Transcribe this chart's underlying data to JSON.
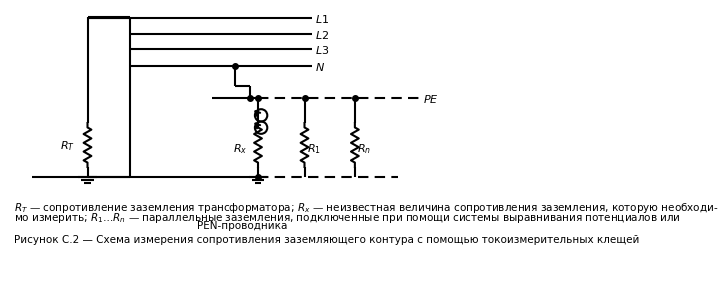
{
  "bg_color": "#ffffff",
  "line_color": "#000000",
  "labels": [
    "L1",
    "L2",
    "L3",
    "N",
    "PE"
  ],
  "R_labels": [
    "R_T",
    "R_x",
    "R_1",
    "R_n"
  ],
  "caption_line1": "R_T — сопротивление заземления трансформатора; R_x — неизвестная величина сопротивления заземления, которую необходи-",
  "caption_line2": "мо измерить; R_1…R_n — параллельные заземления, подключенные при помощи системы выравнивания потенциалов или",
  "caption_line3": "PEN-проводника",
  "figure_caption": "Рисунок С.2 — Схема измерения сопротивления заземляющего контура с помощью токоизмерительных клещей"
}
